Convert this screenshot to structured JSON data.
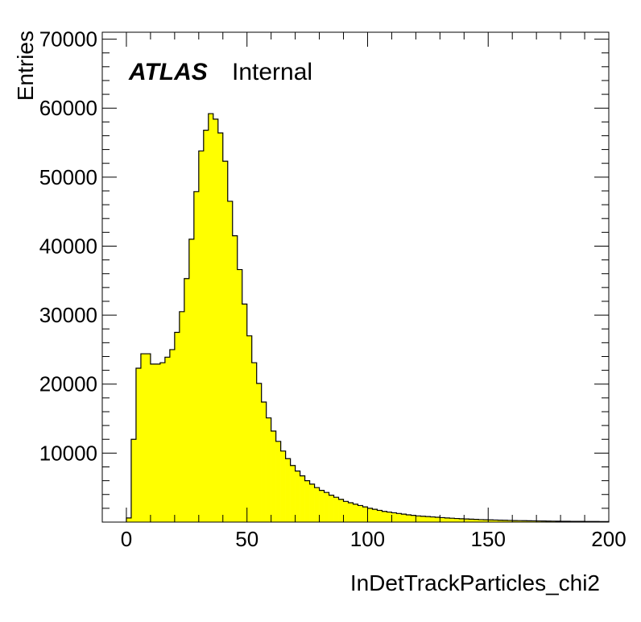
{
  "chart_data": {
    "type": "histogram",
    "title": "",
    "xlabel": "InDetTrackParticles_chi2",
    "ylabel": "Entries",
    "xlim": [
      -10,
      200
    ],
    "ylim": [
      0,
      71000
    ],
    "bin_width": 2,
    "bin_start": 0,
    "fill_color": "#ffff00",
    "line_color": "#000000",
    "grid": false,
    "x_ticks": [
      0,
      50,
      100,
      150,
      200
    ],
    "x_tick_labels": [
      "0",
      "50",
      "100",
      "150",
      "200"
    ],
    "y_ticks": [
      10000,
      20000,
      30000,
      40000,
      50000,
      60000,
      70000
    ],
    "y_tick_labels": [
      "10000",
      "20000",
      "30000",
      "40000",
      "50000",
      "60000",
      "70000"
    ],
    "annotation": {
      "bold": "ATLAS",
      "normal": "Internal"
    },
    "values": [
      600,
      12000,
      22300,
      24400,
      24400,
      22900,
      22900,
      23100,
      23900,
      25000,
      27500,
      30500,
      35300,
      41000,
      47900,
      53800,
      56800,
      59200,
      58400,
      56400,
      52300,
      46500,
      41500,
      36600,
      31600,
      27000,
      23100,
      20100,
      17400,
      15100,
      13200,
      11700,
      10300,
      9200,
      8200,
      7400,
      6700,
      6000,
      5500,
      5000,
      4600,
      4300,
      3900,
      3600,
      3300,
      3000,
      2800,
      2600,
      2400,
      2200,
      2000,
      1850,
      1700,
      1550,
      1450,
      1350,
      1250,
      1150,
      1050,
      980,
      900,
      850,
      800,
      750,
      700,
      650,
      600,
      560,
      520,
      480,
      450,
      420,
      390,
      360,
      340,
      320,
      300,
      280,
      260,
      240,
      220,
      210,
      200,
      190,
      180,
      170,
      160,
      150,
      140,
      130,
      120,
      115,
      110,
      105,
      100,
      95,
      90,
      85,
      80,
      75
    ]
  }
}
